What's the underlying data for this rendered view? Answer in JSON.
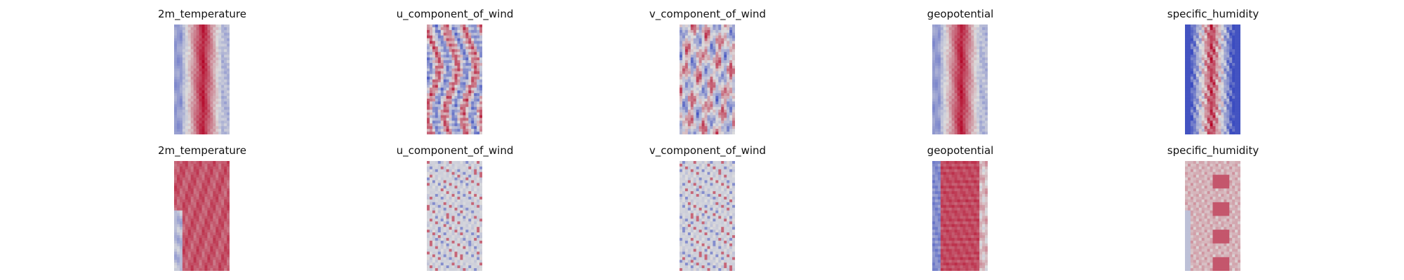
{
  "figure": {
    "colormap": {
      "name": "coolwarm",
      "low": "#3b4cc0",
      "mid": "#dddddd",
      "high": "#b40426"
    }
  },
  "chart_data": [
    {
      "type": "heatmap",
      "title": "2m_temperature",
      "legend": "none",
      "axes": "off",
      "pattern": "central warm band",
      "colormap": "coolwarm"
    },
    {
      "type": "heatmap",
      "title": "u_component_of_wind",
      "legend": "none",
      "axes": "off",
      "pattern": "mixed streaks",
      "colormap": "coolwarm"
    },
    {
      "type": "heatmap",
      "title": "v_component_of_wind",
      "legend": "none",
      "axes": "off",
      "pattern": "mixed patches",
      "colormap": "coolwarm"
    },
    {
      "type": "heatmap",
      "title": "geopotential",
      "legend": "none",
      "axes": "off",
      "pattern": "central warm band",
      "colormap": "coolwarm"
    },
    {
      "type": "heatmap",
      "title": "specific_humidity",
      "legend": "none",
      "axes": "off",
      "pattern": "cool edges with warm center",
      "colormap": "coolwarm"
    },
    {
      "type": "heatmap",
      "title": "2m_temperature",
      "legend": "none",
      "axes": "off",
      "pattern": "broad warm field",
      "colormap": "coolwarm"
    },
    {
      "type": "heatmap",
      "title": "u_component_of_wind",
      "legend": "none",
      "axes": "off",
      "pattern": "neutral field with sparse extremes",
      "colormap": "coolwarm"
    },
    {
      "type": "heatmap",
      "title": "v_component_of_wind",
      "legend": "none",
      "axes": "off",
      "pattern": "neutral field with sparse extremes",
      "colormap": "coolwarm"
    },
    {
      "type": "heatmap",
      "title": "geopotential",
      "legend": "none",
      "axes": "off",
      "pattern": "warm field with cool margins",
      "colormap": "coolwarm"
    },
    {
      "type": "heatmap",
      "title": "specific_humidity",
      "legend": "none",
      "axes": "off",
      "pattern": "light warm field with warm patches",
      "colormap": "coolwarm"
    }
  ]
}
